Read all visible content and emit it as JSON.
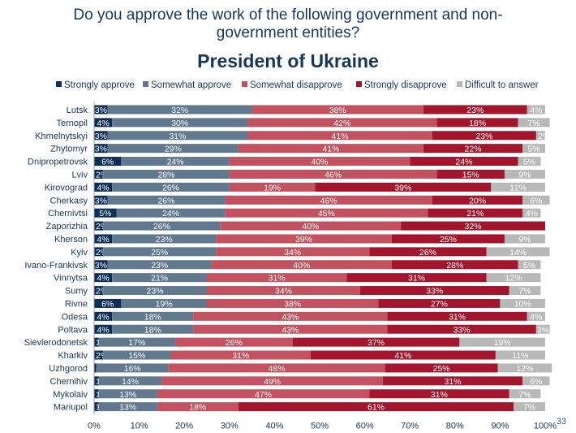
{
  "slide": {
    "title_lines": [
      "Do you approve the work of the following government and non-",
      "government entities?"
    ],
    "subtitle": "President of Ukraine",
    "page_number": "33"
  },
  "chart_data": {
    "type": "bar",
    "orientation": "horizontal",
    "stacked": true,
    "xlim": [
      0,
      100
    ],
    "x_ticks": [
      "0%",
      "10%",
      "20%",
      "30%",
      "40%",
      "50%",
      "60%",
      "70%",
      "80%",
      "90%",
      "100%"
    ],
    "legend_position": "top",
    "categories": [
      "Lutsk",
      "Ternopil",
      "Khmelnytskyi",
      "Zhytomyr",
      "Dnipropetrovsk",
      "Lviv",
      "Kirovograd",
      "Cherkasy",
      "Chernivtsi",
      "Zaporizhia",
      "Kherson",
      "Kyiv",
      "Ivano-Frankivsk",
      "Vinnytsa",
      "Sumy",
      "Rivne",
      "Odesa",
      "Poltava",
      "Sievierodonetsk",
      "Kharkiv",
      "Uzhgorod",
      "Chernihiv",
      "Mykolaiv",
      "Mariupol"
    ],
    "series": [
      {
        "name": "Strongly approve",
        "color": "#0d2f57",
        "label_color": "#ffffff",
        "values": [
          3,
          4,
          3,
          3,
          6,
          2,
          4,
          3,
          5,
          2,
          4,
          2,
          3,
          4,
          2,
          6,
          4,
          4,
          1,
          2,
          0.5,
          1,
          1,
          1
        ],
        "labels": [
          "3%",
          "4%",
          "3%",
          "3%",
          "6%",
          "2%",
          "4%",
          "3%",
          "5%",
          "2%",
          "4%",
          "2%",
          "3%",
          "4%",
          "2%",
          "6%",
          "4%",
          "4%",
          "1%",
          "2%",
          "<1%",
          "1%",
          "1%",
          "1%"
        ]
      },
      {
        "name": "Somewhat approve",
        "color": "#61788f",
        "label_color": "#ffffff",
        "values": [
          32,
          30,
          31,
          29,
          24,
          28,
          26,
          26,
          24,
          26,
          23,
          25,
          23,
          21,
          23,
          19,
          18,
          18,
          17,
          15,
          16,
          14,
          13,
          13
        ],
        "labels": [
          "32%",
          "30%",
          "31%",
          "29%",
          "24%",
          "28%",
          "26%",
          "26%",
          "24%",
          "26%",
          "23%",
          "25%",
          "23%",
          "21%",
          "23%",
          "19%",
          "18%",
          "18%",
          "17%",
          "15%",
          "16%",
          "14%",
          "13%",
          "13%"
        ]
      },
      {
        "name": "Somewhat disapprove",
        "color": "#c2525f",
        "label_color": "#ffffff",
        "values": [
          38,
          42,
          41,
          41,
          40,
          46,
          19,
          46,
          45,
          40,
          39,
          34,
          40,
          31,
          34,
          38,
          43,
          43,
          26,
          31,
          48,
          49,
          47,
          18
        ],
        "labels": [
          "38%",
          "42%",
          "41%",
          "41%",
          "40%",
          "46%",
          "19%",
          "46%",
          "45%",
          "40%",
          "39%",
          "34%",
          "40%",
          "31%",
          "34%",
          "38%",
          "43%",
          "43%",
          "26%",
          "31%",
          "48%",
          "49%",
          "47%",
          "18%"
        ]
      },
      {
        "name": "Strongly disapprove",
        "color": "#a2162d",
        "label_color": "#ffffff",
        "values": [
          23,
          18,
          23,
          22,
          24,
          15,
          39,
          20,
          21,
          32,
          25,
          26,
          28,
          31,
          33,
          27,
          31,
          33,
          37,
          41,
          25,
          31,
          31,
          61
        ],
        "labels": [
          "23%",
          "18%",
          "23%",
          "22%",
          "24%",
          "15%",
          "39%",
          "20%",
          "21%",
          "32%",
          "25%",
          "26%",
          "28%",
          "31%",
          "33%",
          "27%",
          "31%",
          "33%",
          "37%",
          "41%",
          "25%",
          "31%",
          "31%",
          "61%"
        ]
      },
      {
        "name": "Difficult to answer",
        "color": "#b8b8b8",
        "label_color": "#ffffff",
        "values": [
          4,
          7,
          2,
          5,
          5,
          9,
          12,
          6,
          4,
          0,
          9,
          14,
          5,
          12,
          7,
          10,
          4,
          3,
          19,
          11,
          12,
          6,
          7,
          7
        ],
        "labels": [
          "4%",
          "7%",
          "2%",
          "5%",
          "5%",
          "9%",
          "12%",
          "6%",
          "4%",
          "",
          "9%",
          "14%",
          "5%",
          "12%",
          "7%",
          "10%",
          "4%",
          "3%",
          "19%",
          "11%",
          "12%",
          "6%",
          "7%",
          "7%"
        ]
      }
    ]
  }
}
